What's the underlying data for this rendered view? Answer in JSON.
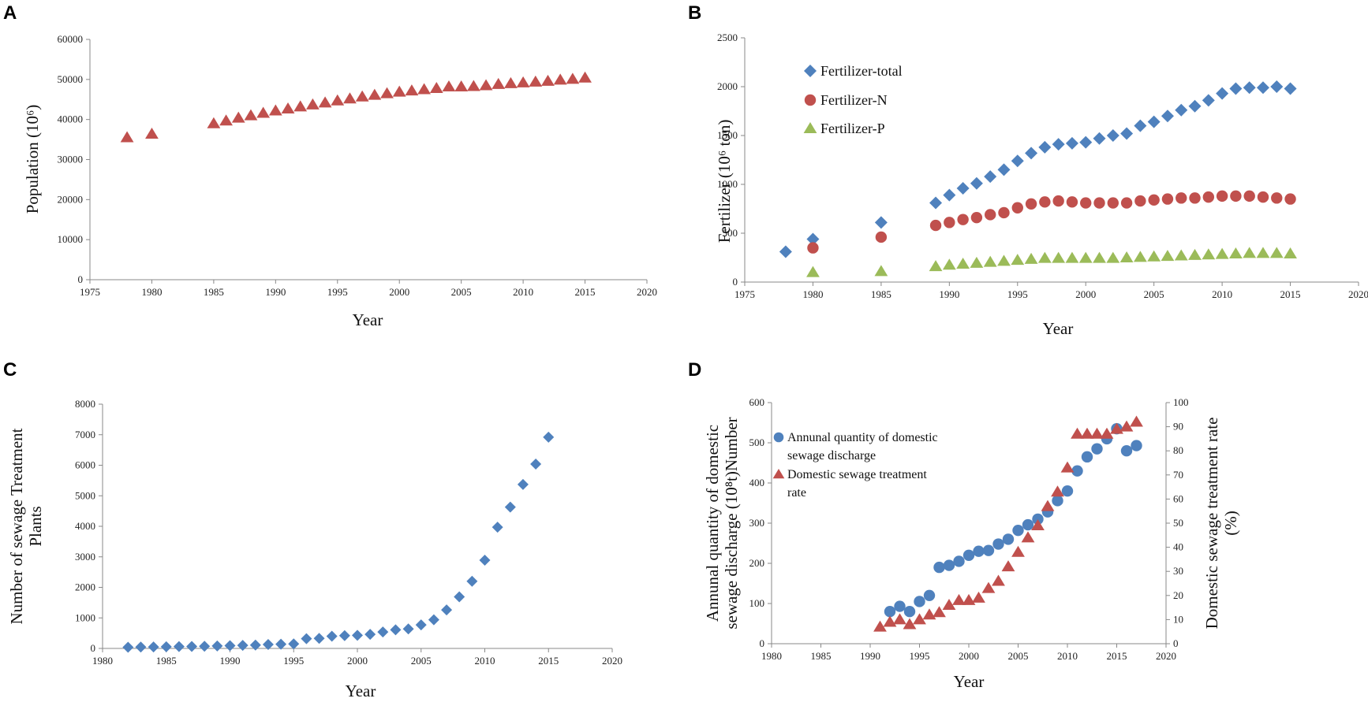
{
  "colors": {
    "red": "#C0504D",
    "blue": "#4F81BD",
    "green": "#9BBB59"
  },
  "chart_data": [
    {
      "panel": "A",
      "type": "scatter",
      "xlabel": "Year",
      "ylabel": "Population (10⁶)",
      "xlim": [
        1975,
        2020
      ],
      "ylim": [
        0,
        60000
      ],
      "xticks": [
        1975,
        1980,
        1985,
        1990,
        1995,
        2000,
        2005,
        2010,
        2015,
        2020
      ],
      "yticks": [
        0,
        10000,
        20000,
        30000,
        40000,
        50000,
        60000
      ],
      "series": [
        {
          "name": "Population",
          "marker": "triangle",
          "color": "#C0504D",
          "x": [
            1978,
            1980,
            1985,
            1986,
            1987,
            1988,
            1989,
            1990,
            1991,
            1992,
            1993,
            1994,
            1995,
            1996,
            1997,
            1998,
            1999,
            2000,
            2001,
            2002,
            2003,
            2004,
            2005,
            2006,
            2007,
            2008,
            2009,
            2010,
            2011,
            2012,
            2013,
            2014,
            2015
          ],
          "y": [
            35500,
            36400,
            39000,
            39700,
            40400,
            41000,
            41600,
            42200,
            42700,
            43200,
            43700,
            44200,
            44700,
            45200,
            45700,
            46100,
            46500,
            46900,
            47200,
            47500,
            47800,
            48200,
            48200,
            48300,
            48500,
            48800,
            49000,
            49200,
            49400,
            49600,
            49900,
            50100,
            50400
          ]
        }
      ]
    },
    {
      "panel": "B",
      "type": "scatter",
      "xlabel": "Year",
      "ylabel": "Fertilizer (10⁶ ton)",
      "xlim": [
        1975,
        2020
      ],
      "ylim": [
        0,
        2500
      ],
      "xticks": [
        1975,
        1980,
        1985,
        1990,
        1995,
        2000,
        2005,
        2010,
        2015,
        2020
      ],
      "yticks": [
        0,
        500,
        1000,
        1500,
        2000,
        2500
      ],
      "legend_position": "top-left",
      "series": [
        {
          "name": "Fertilizer-total",
          "marker": "diamond",
          "color": "#4F81BD",
          "x": [
            1978,
            1980,
            1985,
            1989,
            1990,
            1991,
            1992,
            1993,
            1994,
            1995,
            1996,
            1997,
            1998,
            1999,
            2000,
            2001,
            2002,
            2003,
            2004,
            2005,
            2006,
            2007,
            2008,
            2009,
            2010,
            2011,
            2012,
            2013,
            2014,
            2015
          ],
          "y": [
            310,
            440,
            610,
            810,
            890,
            960,
            1010,
            1080,
            1150,
            1240,
            1320,
            1380,
            1410,
            1420,
            1430,
            1470,
            1500,
            1520,
            1600,
            1640,
            1700,
            1760,
            1800,
            1860,
            1930,
            1980,
            1990,
            1990,
            2000,
            1980
          ]
        },
        {
          "name": "Fertilizer-N",
          "marker": "circle",
          "color": "#C0504D",
          "x": [
            1980,
            1985,
            1989,
            1990,
            1991,
            1992,
            1993,
            1994,
            1995,
            1996,
            1997,
            1998,
            1999,
            2000,
            2001,
            2002,
            2003,
            2004,
            2005,
            2006,
            2007,
            2008,
            2009,
            2010,
            2011,
            2012,
            2013,
            2014,
            2015
          ],
          "y": [
            350,
            460,
            580,
            610,
            640,
            660,
            690,
            710,
            760,
            800,
            820,
            830,
            820,
            810,
            810,
            810,
            810,
            830,
            840,
            850,
            860,
            860,
            870,
            880,
            880,
            880,
            870,
            860,
            850
          ]
        },
        {
          "name": "Fertilizer-P",
          "marker": "triangle",
          "color": "#9BBB59",
          "x": [
            1980,
            1985,
            1989,
            1990,
            1991,
            1992,
            1993,
            1994,
            1995,
            1996,
            1997,
            1998,
            1999,
            2000,
            2001,
            2002,
            2003,
            2004,
            2005,
            2006,
            2007,
            2008,
            2009,
            2010,
            2011,
            2012,
            2013,
            2014,
            2015
          ],
          "y": [
            100,
            110,
            160,
            175,
            185,
            195,
            205,
            215,
            225,
            235,
            245,
            245,
            245,
            245,
            245,
            245,
            250,
            255,
            260,
            265,
            270,
            275,
            280,
            285,
            290,
            295,
            295,
            295,
            290
          ]
        }
      ]
    },
    {
      "panel": "C",
      "type": "scatter",
      "xlabel": "Year",
      "ylabel_lines": [
        "Number of sewage  Treatment",
        "Plants"
      ],
      "xlim": [
        1980,
        2020
      ],
      "ylim": [
        0,
        8000
      ],
      "xticks": [
        1980,
        1985,
        1990,
        1995,
        2000,
        2005,
        2010,
        2015,
        2020
      ],
      "yticks": [
        0,
        1000,
        2000,
        3000,
        4000,
        5000,
        6000,
        7000,
        8000
      ],
      "series": [
        {
          "name": "Sewage treatment plants",
          "marker": "diamond",
          "color": "#4F81BD",
          "x": [
            1982,
            1983,
            1984,
            1985,
            1986,
            1987,
            1988,
            1989,
            1990,
            1991,
            1992,
            1993,
            1994,
            1995,
            1996,
            1997,
            1998,
            1999,
            2000,
            2001,
            2002,
            2003,
            2004,
            2005,
            2006,
            2007,
            2008,
            2009,
            2010,
            2011,
            2012,
            2013,
            2014,
            2015
          ],
          "y": [
            40,
            45,
            50,
            55,
            60,
            65,
            70,
            80,
            90,
            100,
            110,
            130,
            140,
            150,
            320,
            330,
            400,
            420,
            430,
            460,
            540,
            610,
            640,
            770,
            940,
            1260,
            1690,
            2200,
            2890,
            3970,
            4630,
            5370,
            6040,
            6920
          ]
        }
      ]
    },
    {
      "panel": "D",
      "type": "scatter",
      "xlabel": "Year",
      "ylabel_left_lines": [
        "Annunal quantity of domestic",
        "sewage discharge (10⁸t)Number"
      ],
      "ylabel_right_lines": [
        "Domestic sewage treatment rate",
        "(%)"
      ],
      "xlim": [
        1980,
        2020
      ],
      "ylim_left": [
        0,
        600
      ],
      "ylim_right": [
        0,
        100
      ],
      "xticks": [
        1980,
        1985,
        1990,
        1995,
        2000,
        2005,
        2010,
        2015,
        2020
      ],
      "yticks_left": [
        0,
        100,
        200,
        300,
        400,
        500,
        600
      ],
      "yticks_right": [
        0,
        10,
        20,
        30,
        40,
        50,
        60,
        70,
        80,
        90,
        100
      ],
      "legend_position": "top-left",
      "series": [
        {
          "name_lines": [
            "Annunal quantity of domestic",
            "sewage discharge"
          ],
          "marker": "circle",
          "axis": "left",
          "color": "#4F81BD",
          "x": [
            1992,
            1993,
            1994,
            1995,
            1996,
            1997,
            1998,
            1999,
            2000,
            2001,
            2002,
            2003,
            2004,
            2005,
            2006,
            2007,
            2008,
            2009,
            2010,
            2011,
            2012,
            2013,
            2014,
            2015,
            2016,
            2017
          ],
          "y": [
            80,
            93,
            80,
            105,
            120,
            190,
            195,
            205,
            220,
            230,
            232,
            248,
            260,
            282,
            296,
            310,
            328,
            356,
            380,
            430,
            465,
            485,
            510,
            535,
            480,
            493
          ]
        },
        {
          "name_lines": [
            "Domestic sewage treatment",
            "rate"
          ],
          "marker": "triangle",
          "axis": "right",
          "color": "#C0504D",
          "x": [
            1991,
            1992,
            1993,
            1994,
            1995,
            1996,
            1997,
            1998,
            1999,
            2000,
            2001,
            2002,
            2003,
            2004,
            2005,
            2006,
            2007,
            2008,
            2009,
            2010,
            2011,
            2012,
            2013,
            2014,
            2015,
            2016,
            2017
          ],
          "y": [
            7,
            9,
            10,
            8,
            10,
            12,
            13,
            16,
            18,
            18,
            19,
            23,
            26,
            32,
            38,
            44,
            49,
            57,
            63,
            73,
            87,
            87,
            87,
            87,
            89,
            90,
            92
          ]
        }
      ]
    }
  ]
}
